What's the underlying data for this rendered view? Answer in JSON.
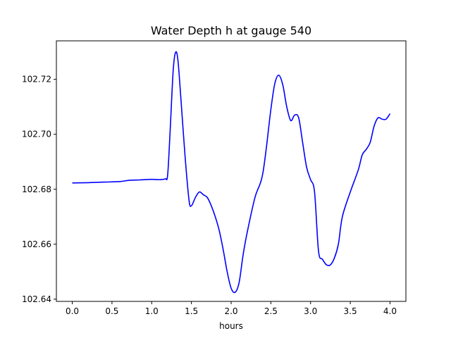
{
  "chart_data": {
    "type": "line",
    "title": "Water Depth h at gauge 540",
    "xlabel": "hours",
    "ylabel": "",
    "xlim": [
      -0.2,
      4.2
    ],
    "ylim": [
      102.6392,
      102.734
    ],
    "grid": false,
    "legend": "none",
    "x_ticks": [
      0.0,
      0.5,
      1.0,
      1.5,
      2.0,
      2.5,
      3.0,
      3.5,
      4.0
    ],
    "x_tick_labels": [
      "0.0",
      "0.5",
      "1.0",
      "1.5",
      "2.0",
      "2.5",
      "3.0",
      "3.5",
      "4.0"
    ],
    "y_ticks": [
      102.64,
      102.66,
      102.68,
      102.7,
      102.72
    ],
    "y_tick_labels": [
      "102.64",
      "102.66",
      "102.68",
      "102.70",
      "102.72"
    ],
    "series": [
      {
        "color": "#0000ff",
        "x": [
          0.0,
          0.2,
          0.4,
          0.6,
          0.7,
          0.85,
          1.0,
          1.1,
          1.17,
          1.2,
          1.23,
          1.27,
          1.3,
          1.33,
          1.37,
          1.42,
          1.47,
          1.5,
          1.55,
          1.6,
          1.65,
          1.7,
          1.75,
          1.8,
          1.85,
          1.9,
          1.95,
          2.0,
          2.05,
          2.1,
          2.15,
          2.2,
          2.3,
          2.4,
          2.5,
          2.55,
          2.6,
          2.65,
          2.7,
          2.75,
          2.8,
          2.85,
          2.9,
          2.95,
          3.0,
          3.05,
          3.1,
          3.15,
          3.2,
          3.25,
          3.3,
          3.35,
          3.4,
          3.5,
          3.6,
          3.65,
          3.7,
          3.75,
          3.8,
          3.85,
          3.9,
          3.95,
          4.0
        ],
        "y": [
          102.6823,
          102.6824,
          102.6826,
          102.6828,
          102.6832,
          102.6834,
          102.6836,
          102.6835,
          102.6838,
          102.685,
          102.7,
          102.723,
          102.7298,
          102.727,
          102.712,
          102.692,
          102.676,
          102.674,
          102.677,
          102.679,
          102.678,
          102.677,
          102.674,
          102.67,
          102.665,
          102.658,
          102.65,
          102.644,
          102.6425,
          102.646,
          102.656,
          102.664,
          102.677,
          102.686,
          102.709,
          102.7185,
          102.7215,
          102.718,
          102.71,
          102.705,
          102.707,
          102.706,
          102.697,
          102.688,
          102.6835,
          102.679,
          102.6575,
          102.6545,
          102.6525,
          102.6525,
          102.655,
          102.66,
          102.67,
          102.679,
          102.687,
          102.6925,
          102.6945,
          102.697,
          102.703,
          102.706,
          102.7055,
          102.7055,
          102.7075
        ]
      }
    ]
  }
}
